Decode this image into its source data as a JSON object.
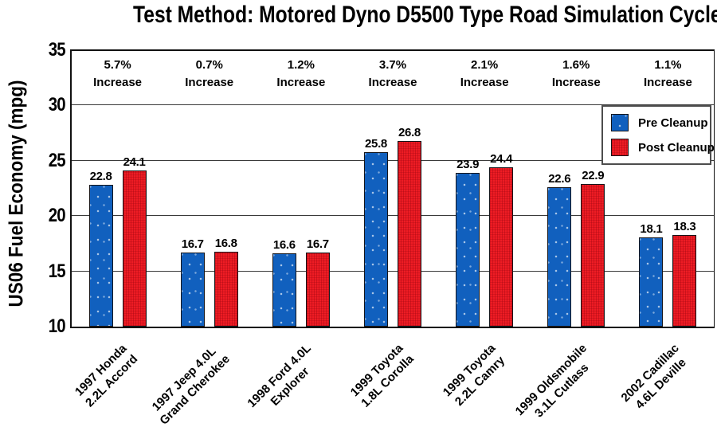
{
  "title": "Test Method: Motored Dyno D5500 Type Road Simulation Cycle",
  "chart_data": {
    "type": "bar",
    "title": "Test Method: Motored Dyno D5500 Type Road Simulation Cycle",
    "ylabel": "US06 Fuel Economy (mpg)",
    "xlabel": "",
    "ylim": [
      10,
      35
    ],
    "yticks": [
      10,
      15,
      20,
      25,
      30,
      35
    ],
    "grid": true,
    "legend_position": "upper-right",
    "categories": [
      [
        "1997 Honda",
        "2.2L Accord"
      ],
      [
        "1997 Jeep 4.0L",
        "Grand Cherokee"
      ],
      [
        "1998 Ford 4.0L",
        "Explorer"
      ],
      [
        "1999 Toyota",
        "1.8L Corolla"
      ],
      [
        "1999 Toyota",
        "2.2L Camry"
      ],
      [
        "1999 Oldsmobile",
        "3.1L Cutlass"
      ],
      [
        "2002 Cadillac",
        "4.6L Deville"
      ]
    ],
    "series": [
      {
        "name": "Pre Cleanup",
        "color": "#1160be",
        "values": [
          22.8,
          16.7,
          16.6,
          25.8,
          23.9,
          22.6,
          18.1
        ]
      },
      {
        "name": "Post Cleanup",
        "color": "#ee1c24",
        "values": [
          24.1,
          16.8,
          16.7,
          26.8,
          24.4,
          22.9,
          18.3
        ]
      }
    ],
    "annotations": {
      "increase_labels": [
        "5.7%",
        "0.7%",
        "1.2%",
        "3.7%",
        "2.1%",
        "1.6%",
        "1.1%"
      ],
      "increase_word": "Increase"
    }
  },
  "colors": {
    "pre_cleanup": "#1160be",
    "post_cleanup": "#ee1c24",
    "bar_outline": "#15151a",
    "grid": "#3a3a3a",
    "axis": "#111111",
    "legend_border": "#4d4d4d",
    "text": "#000000",
    "background": "#ffffff"
  }
}
